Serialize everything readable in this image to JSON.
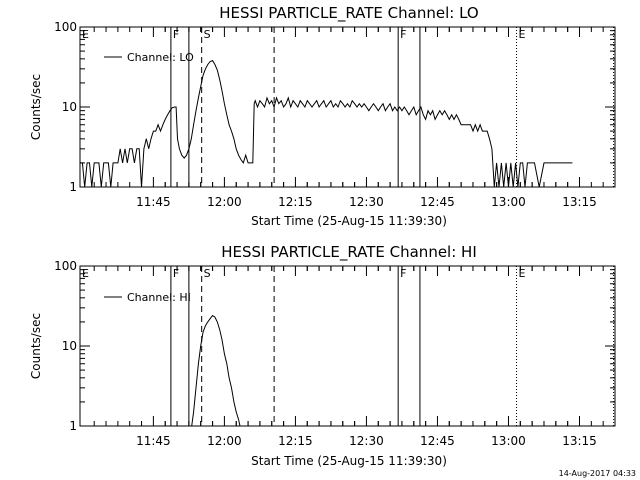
{
  "chart_data": [
    {
      "type": "line",
      "title": "HESSI PARTICLE_RATE Channel: LO",
      "xlabel": "Start Time (25-Aug-15 11:39:30)",
      "ylabel": "Counts/sec",
      "yscale": "log",
      "ylim": [
        1,
        100
      ],
      "xlim_minutes": [
        -10,
        103
      ],
      "xticks": [
        "11:45",
        "12:00",
        "12:15",
        "12:30",
        "12:45",
        "13:00",
        "13:15"
      ],
      "xtick_minutes": [
        5.5,
        20.5,
        35.5,
        50.5,
        65.5,
        80.5,
        95.5
      ],
      "yticks": [
        "1",
        "10",
        "100"
      ],
      "grid": false,
      "legend": {
        "label": "Channel: LO",
        "position": "top-left"
      },
      "series": [
        {
          "name": "Channel: LO",
          "points": [
            [
              -10,
              2
            ],
            [
              -9.5,
              2
            ],
            [
              -9,
              1
            ],
            [
              -8.5,
              2
            ],
            [
              -8,
              2
            ],
            [
              -7.5,
              1
            ],
            [
              -7,
              2
            ],
            [
              -6.5,
              2
            ],
            [
              -6,
              2
            ],
            [
              -5.5,
              1
            ],
            [
              -5,
              2
            ],
            [
              -4,
              2
            ],
            [
              -3.5,
              1
            ],
            [
              -3,
              2
            ],
            [
              -2,
              2
            ],
            [
              -1.5,
              3
            ],
            [
              -1,
              2
            ],
            [
              -0.5,
              3
            ],
            [
              0,
              2
            ],
            [
              0.5,
              3
            ],
            [
              1,
              3
            ],
            [
              1.5,
              2
            ],
            [
              2,
              3
            ],
            [
              2.5,
              3
            ],
            [
              3,
              1
            ],
            [
              3.5,
              3
            ],
            [
              4,
              4
            ],
            [
              4.5,
              3
            ],
            [
              5,
              4
            ],
            [
              5.5,
              5
            ],
            [
              6,
              5
            ],
            [
              6.5,
              6
            ],
            [
              7,
              5
            ],
            [
              7.5,
              6
            ],
            [
              8,
              7
            ],
            [
              8.5,
              8
            ],
            [
              9,
              9
            ],
            [
              9.5,
              9.8
            ],
            [
              10,
              10
            ],
            [
              10.3,
              10
            ],
            [
              10.6,
              4
            ],
            [
              11,
              3
            ],
            [
              11.5,
              2.5
            ],
            [
              12,
              2.3
            ],
            [
              12.5,
              2.5
            ],
            [
              13,
              3
            ],
            [
              13.5,
              4
            ],
            [
              14,
              6
            ],
            [
              14.5,
              9
            ],
            [
              15,
              13
            ],
            [
              15.5,
              18
            ],
            [
              16,
              25
            ],
            [
              16.5,
              30
            ],
            [
              17,
              34
            ],
            [
              17.5,
              37
            ],
            [
              18,
              38
            ],
            [
              18.5,
              34
            ],
            [
              19,
              29
            ],
            [
              19.5,
              22
            ],
            [
              20,
              16
            ],
            [
              20.5,
              11
            ],
            [
              21,
              8
            ],
            [
              21.5,
              6
            ],
            [
              22,
              5
            ],
            [
              22.5,
              4
            ],
            [
              23,
              3
            ],
            [
              23.5,
              2.5
            ],
            [
              24,
              2.2
            ],
            [
              24.5,
              2
            ],
            [
              25,
              2.5
            ],
            [
              25.5,
              2
            ],
            [
              26,
              2
            ],
            [
              26.5,
              2
            ],
            [
              26.8,
              11
            ],
            [
              27,
              12
            ],
            [
              27.5,
              10
            ],
            [
              28,
              12
            ],
            [
              28.5,
              11
            ],
            [
              29,
              10
            ],
            [
              29.5,
              13
            ],
            [
              30,
              11
            ],
            [
              30.5,
              12
            ],
            [
              31,
              10
            ],
            [
              31.5,
              13
            ],
            [
              32,
              11
            ],
            [
              32.5,
              12
            ],
            [
              33,
              10
            ],
            [
              33.5,
              11
            ],
            [
              34,
              13
            ],
            [
              34.5,
              10
            ],
            [
              35,
              12
            ],
            [
              35.5,
              11
            ],
            [
              36,
              10
            ],
            [
              36.5,
              12
            ],
            [
              37,
              11
            ],
            [
              37.5,
              10
            ],
            [
              38,
              12
            ],
            [
              38.5,
              11
            ],
            [
              39,
              10
            ],
            [
              39.5,
              11
            ],
            [
              40,
              12
            ],
            [
              40.5,
              10
            ],
            [
              41,
              11
            ],
            [
              41.5,
              12
            ],
            [
              42,
              10
            ],
            [
              42.5,
              11
            ],
            [
              43,
              12
            ],
            [
              43.5,
              10
            ],
            [
              44,
              11
            ],
            [
              44.5,
              10
            ],
            [
              45,
              12
            ],
            [
              45.5,
              11
            ],
            [
              46,
              10
            ],
            [
              46.5,
              11
            ],
            [
              47,
              10
            ],
            [
              47.5,
              12
            ],
            [
              48,
              11
            ],
            [
              48.5,
              10
            ],
            [
              49,
              11
            ],
            [
              49.5,
              10
            ],
            [
              50,
              11
            ],
            [
              50.5,
              10
            ],
            [
              51,
              9
            ],
            [
              51.5,
              10
            ],
            [
              52,
              11
            ],
            [
              52.5,
              10
            ],
            [
              53,
              9
            ],
            [
              53.5,
              10
            ],
            [
              54,
              11
            ],
            [
              54.5,
              9
            ],
            [
              55,
              10
            ],
            [
              55.5,
              11
            ],
            [
              56,
              9
            ],
            [
              56.5,
              10
            ],
            [
              57,
              9
            ],
            [
              57.5,
              10
            ],
            [
              58,
              9
            ],
            [
              58.5,
              10
            ],
            [
              59,
              9
            ],
            [
              59.5,
              8
            ],
            [
              60,
              9
            ],
            [
              60.5,
              10
            ],
            [
              61,
              8
            ],
            [
              61.5,
              9
            ],
            [
              62,
              10
            ],
            [
              62.5,
              8
            ],
            [
              63,
              7
            ],
            [
              63.5,
              9
            ],
            [
              64,
              8
            ],
            [
              64.5,
              9
            ],
            [
              65,
              7
            ],
            [
              65.5,
              8
            ],
            [
              66,
              9
            ],
            [
              66.5,
              8
            ],
            [
              67,
              9
            ],
            [
              67.5,
              8
            ],
            [
              68,
              7
            ],
            [
              68.5,
              8
            ],
            [
              69,
              7
            ],
            [
              69.5,
              8
            ],
            [
              70,
              7
            ],
            [
              70.5,
              6
            ],
            [
              71,
              6
            ],
            [
              71.5,
              6
            ],
            [
              72,
              6
            ],
            [
              72.5,
              6
            ],
            [
              73,
              5
            ],
            [
              73.5,
              6
            ],
            [
              74,
              5
            ],
            [
              74.5,
              6
            ],
            [
              75,
              5
            ],
            [
              75.5,
              5
            ],
            [
              76,
              5
            ],
            [
              76.5,
              4
            ],
            [
              77,
              3
            ],
            [
              77.5,
              1
            ],
            [
              78,
              2
            ],
            [
              78.5,
              1
            ],
            [
              79,
              2
            ],
            [
              79.5,
              1
            ],
            [
              80,
              2
            ],
            [
              80.5,
              1
            ],
            [
              81,
              2
            ],
            [
              81.5,
              1
            ],
            [
              82,
              2
            ],
            [
              82.5,
              1
            ],
            [
              83,
              2
            ],
            [
              83.5,
              2
            ],
            [
              84,
              1
            ],
            [
              84.5,
              2
            ],
            [
              85,
              2
            ],
            [
              86,
              2
            ],
            [
              87,
              1
            ],
            [
              88,
              2
            ],
            [
              89,
              2
            ],
            [
              90,
              2
            ],
            [
              91,
              2
            ],
            [
              92,
              2
            ],
            [
              93,
              2
            ],
            [
              94,
              2
            ]
          ]
        }
      ],
      "annotations": [
        {
          "label": "E",
          "minute": -10,
          "style": "dotted"
        },
        {
          "label": "F",
          "minute": 9.2,
          "style": "solid"
        },
        {
          "label": "",
          "minute": 13.0,
          "style": "solid"
        },
        {
          "label": "S",
          "minute": 15.7,
          "style": "dashed"
        },
        {
          "label": "",
          "minute": 31.0,
          "style": "dashed"
        },
        {
          "label": "F",
          "minute": 57.2,
          "style": "solid"
        },
        {
          "label": "",
          "minute": 61.8,
          "style": "solid"
        },
        {
          "label": "E",
          "minute": 82.2,
          "style": "dotted"
        },
        {
          "label": "",
          "minute": 102.7,
          "style": "dotted"
        }
      ]
    },
    {
      "type": "line",
      "title": "HESSI PARTICLE_RATE Channel: HI",
      "xlabel": "Start Time (25-Aug-15 11:39:30)",
      "ylabel": "Counts/sec",
      "yscale": "log",
      "ylim": [
        1,
        100
      ],
      "xlim_minutes": [
        -10,
        103
      ],
      "xticks": [
        "11:45",
        "12:00",
        "12:15",
        "12:30",
        "12:45",
        "13:00",
        "13:15"
      ],
      "xtick_minutes": [
        5.5,
        20.5,
        35.5,
        50.5,
        65.5,
        80.5,
        95.5
      ],
      "yticks": [
        "1",
        "10",
        "100"
      ],
      "grid": false,
      "legend": {
        "label": "Channel: HI",
        "position": "top-left"
      },
      "series": [
        {
          "name": "Channel: HI",
          "points": [
            [
              13.6,
              0.8
            ],
            [
              14,
              1.5
            ],
            [
              14.5,
              3
            ],
            [
              15,
              6
            ],
            [
              15.5,
              10
            ],
            [
              16,
              15
            ],
            [
              16.5,
              18
            ],
            [
              17,
              20
            ],
            [
              17.5,
              22
            ],
            [
              18,
              24
            ],
            [
              18.5,
              23
            ],
            [
              19,
              20
            ],
            [
              19.5,
              16
            ],
            [
              20,
              12
            ],
            [
              20.5,
              8
            ],
            [
              21,
              6
            ],
            [
              21.5,
              4
            ],
            [
              22,
              3
            ],
            [
              22.5,
              2
            ],
            [
              23,
              1.5
            ],
            [
              23.5,
              1.2
            ],
            [
              23.8,
              0.8
            ]
          ]
        }
      ],
      "annotations": [
        {
          "label": "E",
          "minute": -10,
          "style": "dotted"
        },
        {
          "label": "F",
          "minute": 9.2,
          "style": "solid"
        },
        {
          "label": "",
          "minute": 13.0,
          "style": "solid"
        },
        {
          "label": "S",
          "minute": 15.7,
          "style": "dashed"
        },
        {
          "label": "",
          "minute": 31.0,
          "style": "dashed"
        },
        {
          "label": "F",
          "minute": 57.2,
          "style": "solid"
        },
        {
          "label": "",
          "minute": 61.8,
          "style": "solid"
        },
        {
          "label": "E",
          "minute": 82.2,
          "style": "dotted"
        },
        {
          "label": "",
          "minute": 102.7,
          "style": "dotted"
        }
      ]
    }
  ],
  "footer": {
    "timestamp": "14-Aug-2017 04:33"
  }
}
